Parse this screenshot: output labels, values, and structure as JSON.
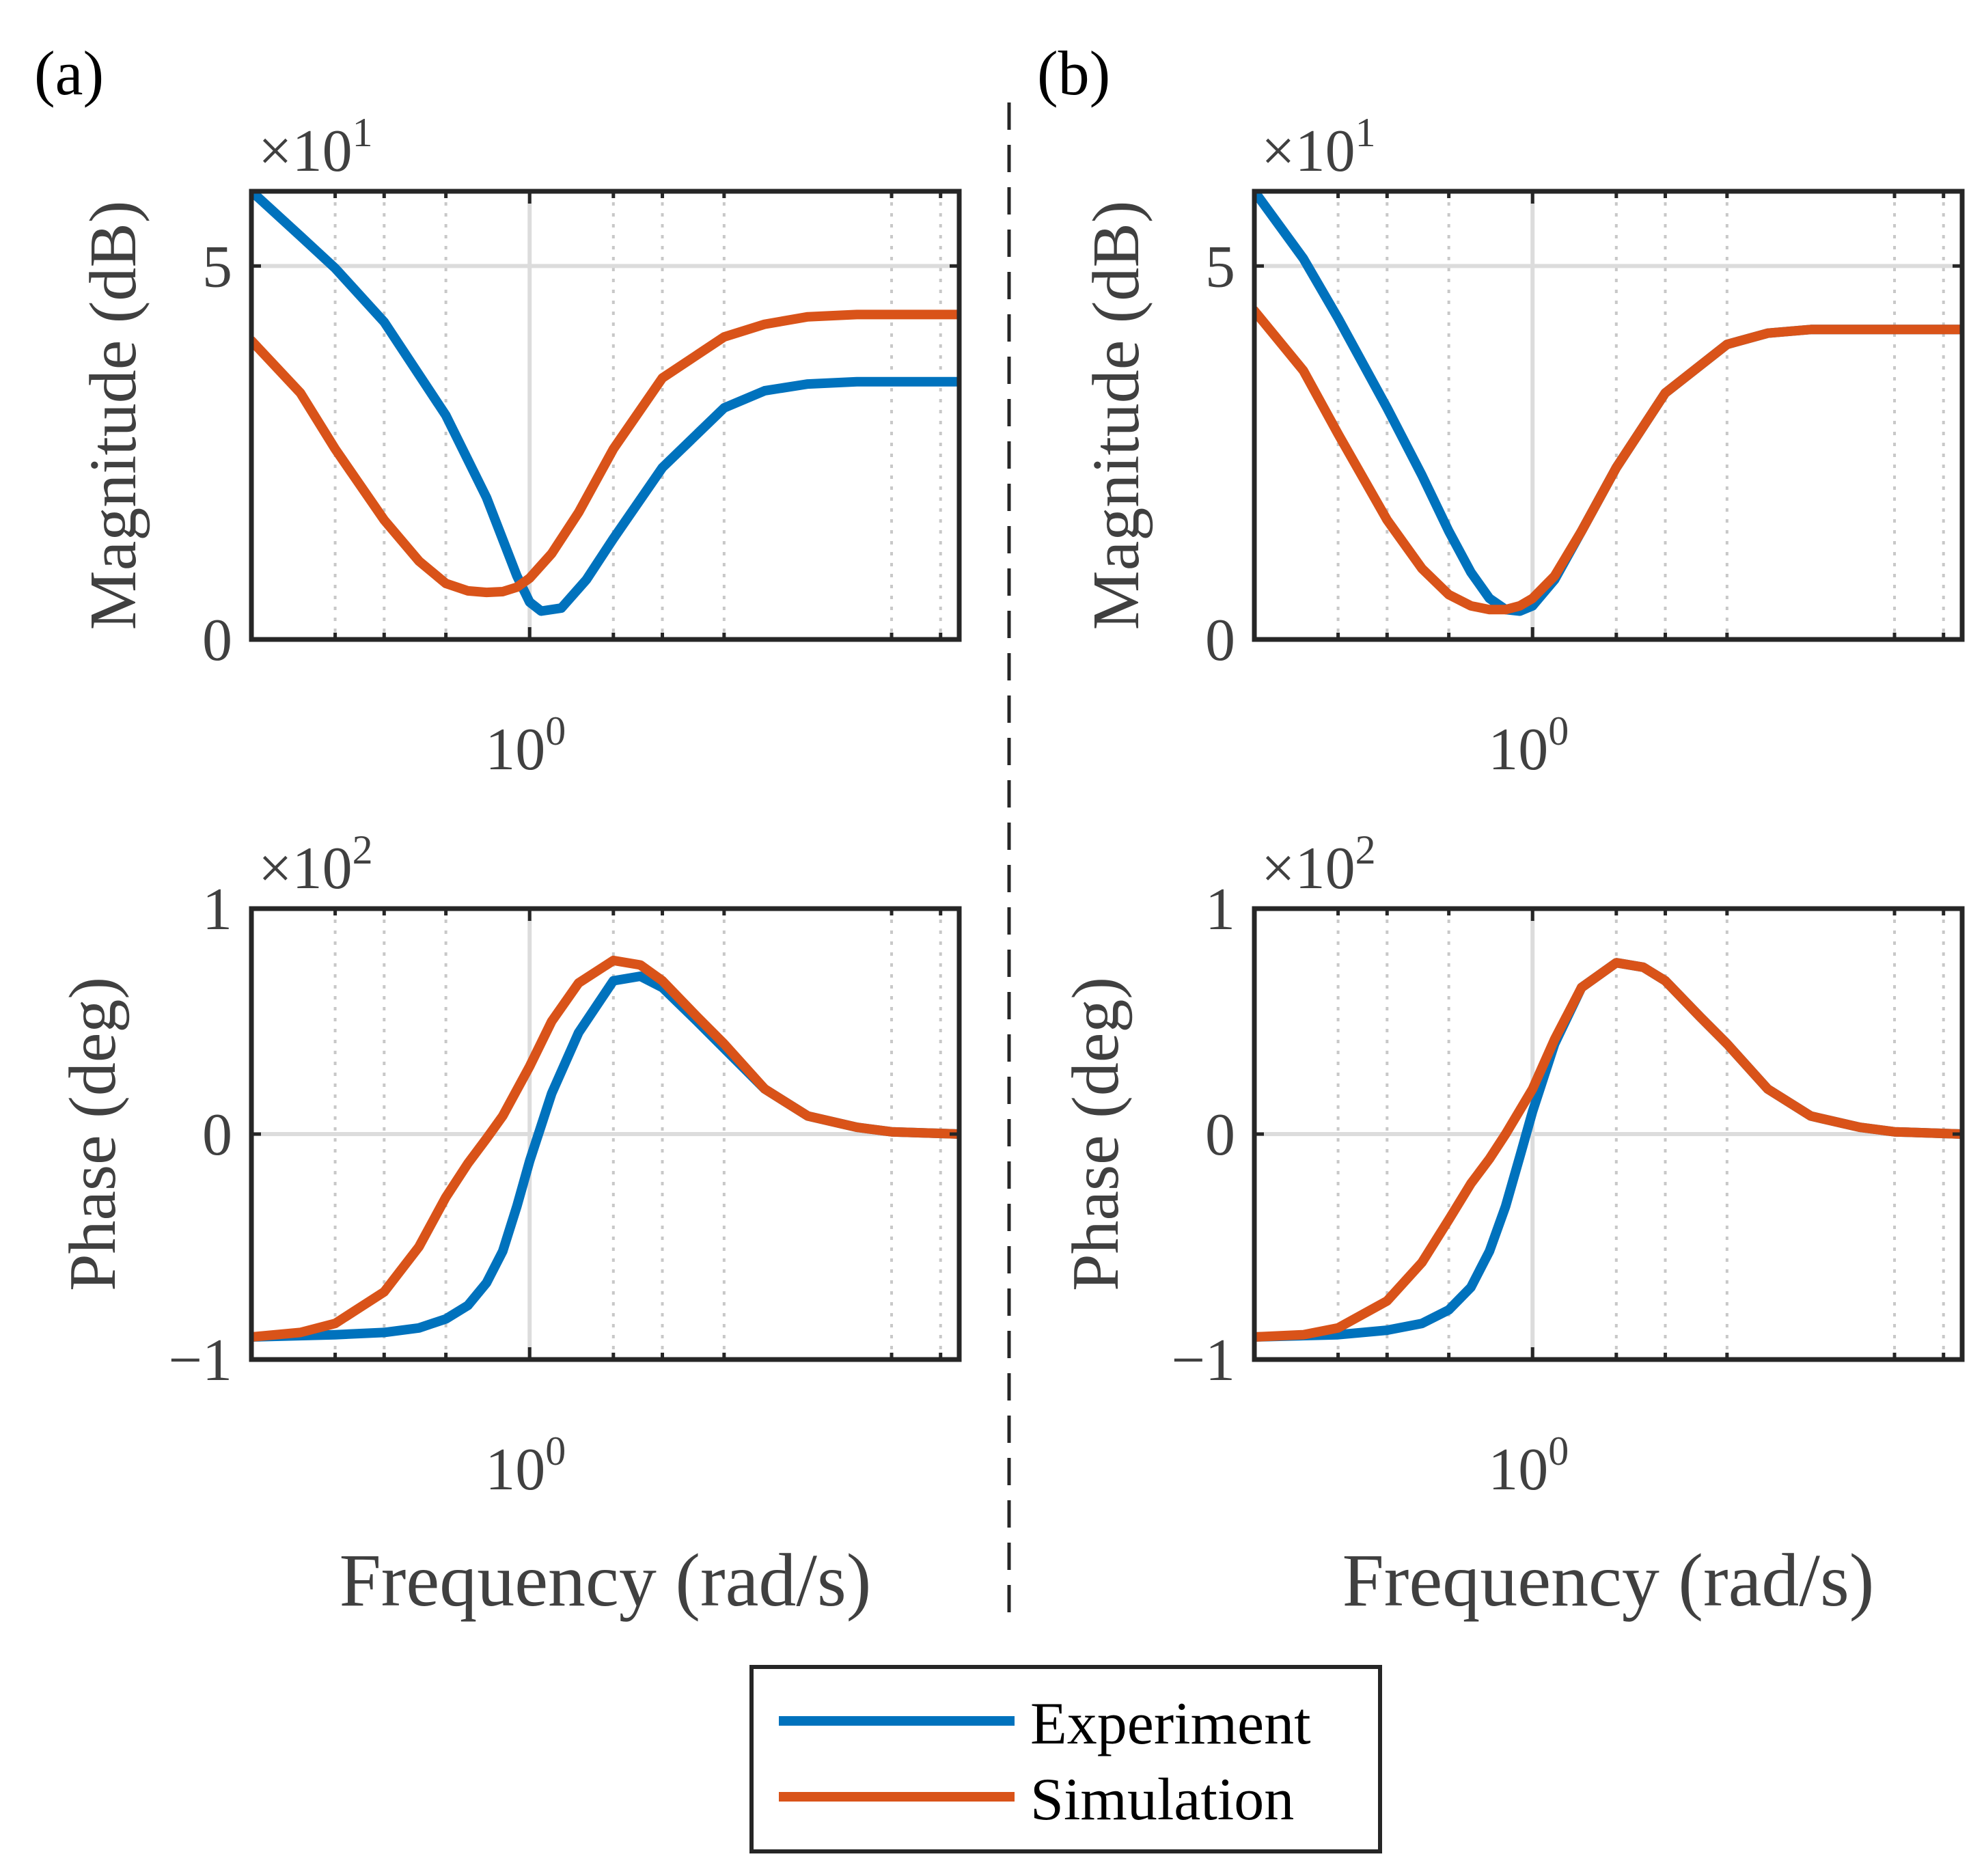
{
  "panel_labels": [
    "(a)",
    "(b)"
  ],
  "colors": {
    "experiment": "#0072BD",
    "simulation": "#D95319",
    "axes": "#262626",
    "grid": "#DCDCDC",
    "text": "#404040"
  },
  "legend": {
    "placement": "bottom-center",
    "entries": [
      "Experiment",
      "Simulation"
    ]
  },
  "chart_data": [
    {
      "type": "line",
      "panel": "(a)",
      "row": "magnitude",
      "ylabel": "Magnitude (dB)",
      "exponent_label": "×10",
      "exponent_power": "1",
      "x_tick_label": "10",
      "x_tick_power": "0",
      "xscale": "log",
      "xlim": [
        0.1,
        35
      ],
      "ylim": [
        0,
        6
      ],
      "yticks": [
        0,
        5
      ],
      "ytick_labels": [
        "0",
        "5"
      ],
      "grid": true,
      "series": [
        {
          "name": "Experiment",
          "x": [
            0.1,
            0.15,
            0.2,
            0.3,
            0.5,
            0.7,
            0.9,
            1.0,
            1.1,
            1.3,
            1.6,
            2.0,
            3.0,
            5.0,
            7.0,
            10.0,
            15.0,
            20.0,
            35.0
          ],
          "y": [
            6.0,
            5.4,
            4.97,
            4.25,
            3.0,
            1.9,
            0.85,
            0.5,
            0.38,
            0.42,
            0.8,
            1.35,
            2.3,
            3.1,
            3.33,
            3.42,
            3.45,
            3.45,
            3.45
          ]
        },
        {
          "name": "Simulation",
          "x": [
            0.1,
            0.15,
            0.2,
            0.3,
            0.4,
            0.5,
            0.6,
            0.7,
            0.8,
            0.9,
            1.0,
            1.2,
            1.5,
            2.0,
            3.0,
            5.0,
            7.0,
            10.0,
            15.0,
            20.0,
            35.0
          ],
          "y": [
            4.0,
            3.3,
            2.55,
            1.6,
            1.05,
            0.75,
            0.65,
            0.63,
            0.64,
            0.7,
            0.82,
            1.15,
            1.7,
            2.55,
            3.5,
            4.05,
            4.22,
            4.32,
            4.35,
            4.35,
            4.35
          ]
        }
      ]
    },
    {
      "type": "line",
      "panel": "(a)",
      "row": "phase",
      "ylabel": "Phase (deg)",
      "exponent_label": "×10",
      "exponent_power": "2",
      "x_tick_label": "10",
      "x_tick_power": "0",
      "xscale": "log",
      "xlim": [
        0.1,
        35
      ],
      "ylim": [
        -1,
        1
      ],
      "yticks": [
        -1,
        0,
        1
      ],
      "ytick_labels": [
        "−1",
        "0",
        "1"
      ],
      "xlabel": "Frequency (rad/s)",
      "grid": true,
      "series": [
        {
          "name": "Experiment",
          "x": [
            0.1,
            0.2,
            0.3,
            0.4,
            0.5,
            0.6,
            0.7,
            0.8,
            0.9,
            1.0,
            1.2,
            1.5,
            2.0,
            2.5,
            3.0,
            4.0,
            5.0,
            7.0,
            10.0,
            15.0,
            20.0,
            35.0
          ],
          "y": [
            -0.9,
            -0.89,
            -0.88,
            -0.86,
            -0.82,
            -0.76,
            -0.66,
            -0.52,
            -0.32,
            -0.12,
            0.18,
            0.45,
            0.68,
            0.7,
            0.65,
            0.5,
            0.38,
            0.2,
            0.08,
            0.03,
            0.01,
            0.0
          ]
        },
        {
          "name": "Simulation",
          "x": [
            0.1,
            0.15,
            0.2,
            0.3,
            0.4,
            0.5,
            0.6,
            0.7,
            0.8,
            1.0,
            1.2,
            1.5,
            2.0,
            2.5,
            3.0,
            4.0,
            5.0,
            7.0,
            10.0,
            15.0,
            20.0,
            35.0
          ],
          "y": [
            -0.9,
            -0.88,
            -0.84,
            -0.7,
            -0.5,
            -0.28,
            -0.13,
            -0.02,
            0.08,
            0.3,
            0.5,
            0.67,
            0.77,
            0.75,
            0.68,
            0.52,
            0.4,
            0.2,
            0.08,
            0.03,
            0.01,
            0.0
          ]
        }
      ]
    },
    {
      "type": "line",
      "panel": "(b)",
      "row": "magnitude",
      "ylabel": "Magnitude (dB)",
      "exponent_label": "×10",
      "exponent_power": "1",
      "x_tick_label": "10",
      "x_tick_power": "0",
      "xscale": "log",
      "xlim": [
        0.1,
        35
      ],
      "ylim": [
        0,
        6
      ],
      "yticks": [
        0,
        5
      ],
      "ytick_labels": [
        "0",
        "5"
      ],
      "grid": true,
      "series": [
        {
          "name": "Experiment",
          "x": [
            0.1,
            0.15,
            0.2,
            0.3,
            0.4,
            0.5,
            0.6,
            0.7,
            0.8,
            0.9,
            1.0,
            1.2,
            1.5,
            2.0,
            3.0,
            5.0,
            7.0,
            10.0,
            15.0,
            20.0,
            35.0
          ],
          "y": [
            6.0,
            5.1,
            4.3,
            3.1,
            2.2,
            1.45,
            0.9,
            0.55,
            0.4,
            0.38,
            0.45,
            0.8,
            1.45,
            2.3,
            3.3,
            3.95,
            4.1,
            4.15,
            4.15,
            4.15,
            4.15
          ]
        },
        {
          "name": "Simulation",
          "x": [
            0.1,
            0.15,
            0.2,
            0.3,
            0.4,
            0.5,
            0.6,
            0.7,
            0.8,
            0.9,
            1.0,
            1.2,
            1.5,
            2.0,
            3.0,
            5.0,
            7.0,
            10.0,
            15.0,
            20.0,
            35.0
          ],
          "y": [
            4.4,
            3.6,
            2.75,
            1.6,
            0.95,
            0.6,
            0.45,
            0.4,
            0.4,
            0.45,
            0.55,
            0.85,
            1.45,
            2.3,
            3.3,
            3.95,
            4.1,
            4.15,
            4.15,
            4.15,
            4.15
          ]
        }
      ]
    },
    {
      "type": "line",
      "panel": "(b)",
      "row": "phase",
      "ylabel": "Phase (deg)",
      "exponent_label": "×10",
      "exponent_power": "2",
      "x_tick_label": "10",
      "x_tick_power": "0",
      "xscale": "log",
      "xlim": [
        0.1,
        35
      ],
      "ylim": [
        -1,
        1
      ],
      "yticks": [
        -1,
        0,
        1
      ],
      "ytick_labels": [
        "−1",
        "0",
        "1"
      ],
      "xlabel": "Frequency (rad/s)",
      "grid": true,
      "series": [
        {
          "name": "Experiment",
          "x": [
            0.1,
            0.2,
            0.3,
            0.4,
            0.5,
            0.6,
            0.7,
            0.8,
            0.9,
            1.0,
            1.2,
            1.5,
            2.0,
            2.5,
            3.0,
            4.0,
            5.0,
            7.0,
            10.0,
            15.0,
            20.0,
            35.0
          ],
          "y": [
            -0.9,
            -0.89,
            -0.87,
            -0.84,
            -0.78,
            -0.68,
            -0.52,
            -0.32,
            -0.1,
            0.1,
            0.4,
            0.65,
            0.76,
            0.74,
            0.68,
            0.52,
            0.4,
            0.2,
            0.08,
            0.03,
            0.01,
            0.0
          ]
        },
        {
          "name": "Simulation",
          "x": [
            0.1,
            0.15,
            0.2,
            0.3,
            0.4,
            0.5,
            0.6,
            0.7,
            0.8,
            1.0,
            1.2,
            1.5,
            2.0,
            2.5,
            3.0,
            4.0,
            5.0,
            7.0,
            10.0,
            15.0,
            20.0,
            35.0
          ],
          "y": [
            -0.9,
            -0.89,
            -0.86,
            -0.74,
            -0.57,
            -0.38,
            -0.22,
            -0.11,
            0.0,
            0.2,
            0.42,
            0.65,
            0.76,
            0.74,
            0.68,
            0.52,
            0.4,
            0.2,
            0.08,
            0.03,
            0.01,
            0.0
          ]
        }
      ]
    }
  ]
}
